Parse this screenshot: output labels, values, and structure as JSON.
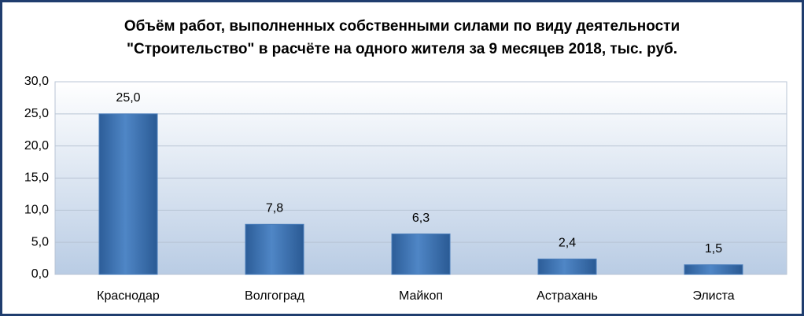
{
  "chart_data": {
    "type": "bar",
    "title": [
      "Объём работ, выполненных собственными силами по виду деятельности",
      "\"Строительство\" в расчёте на одного жителя за 9 месяцев 2018, тыс. руб."
    ],
    "categories": [
      "Краснодар",
      "Волгоград",
      "Майкоп",
      "Астрахань",
      "Элиста"
    ],
    "values": [
      25.0,
      7.8,
      6.3,
      2.4,
      1.5
    ],
    "value_labels": [
      "25,0",
      "7,8",
      "6,3",
      "2,4",
      "1,5"
    ],
    "color": "#4a7ebb",
    "ylim": [
      0,
      30
    ],
    "yticks": [
      {
        "value": 0,
        "label": "0,0"
      },
      {
        "value": 5,
        "label": "5,0"
      },
      {
        "value": 10,
        "label": "10,0"
      },
      {
        "value": 15,
        "label": "15,0"
      },
      {
        "value": 20,
        "label": "20,0"
      },
      {
        "value": 25,
        "label": "25,0"
      },
      {
        "value": 30,
        "label": "30,0"
      }
    ],
    "grid": true
  }
}
